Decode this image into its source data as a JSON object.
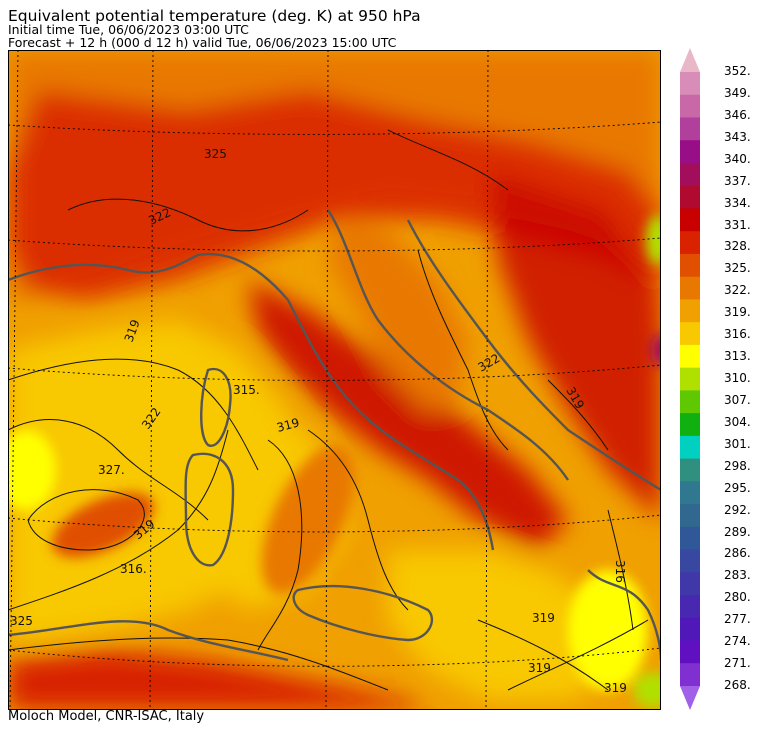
{
  "header": {
    "title": "Equivalent potential temperature (deg. K) at 950 hPa",
    "initial_time": "Initial time  Tue, 06/06/2023  03:00 UTC",
    "forecast": "Forecast  +  12 h  (000 d 12 h)  valid Tue, 06/06/2023 15:00 UTC"
  },
  "footer": {
    "credit": "Moloch Model, CNR-ISAC, Italy"
  },
  "colorbar": {
    "levels": [
      "352.",
      "349.",
      "346.",
      "343.",
      "340.",
      "337.",
      "334.",
      "331.",
      "328.",
      "325.",
      "322.",
      "319.",
      "316.",
      "313.",
      "310.",
      "307.",
      "304.",
      "301.",
      "298.",
      "295.",
      "292.",
      "289.",
      "286.",
      "283.",
      "280.",
      "277.",
      "274.",
      "271.",
      "268."
    ],
    "colors": [
      "#e8b8c8",
      "#d88cb8",
      "#c868a8",
      "#b0409c",
      "#980e86",
      "#a20e5c",
      "#b00a30",
      "#c80000",
      "#d82200",
      "#e05000",
      "#e87800",
      "#f0a000",
      "#f8c800",
      "#ffff00",
      "#b0e000",
      "#60c800",
      "#10b010",
      "#00d0c0",
      "#309080",
      "#307890",
      "#306890",
      "#305898",
      "#3848a0",
      "#4038a8",
      "#4828b0",
      "#5018b8",
      "#6010c0",
      "#8030d0",
      "#a060e8"
    ]
  },
  "map": {
    "contour_labels": [
      "322",
      "325",
      "319",
      "315.",
      "319",
      "327.",
      "322",
      "316.",
      "319",
      "325",
      "322",
      "319",
      "319",
      "316",
      "319",
      "319"
    ],
    "colors": {
      "coast": "#555555",
      "contour": "#111111"
    }
  }
}
